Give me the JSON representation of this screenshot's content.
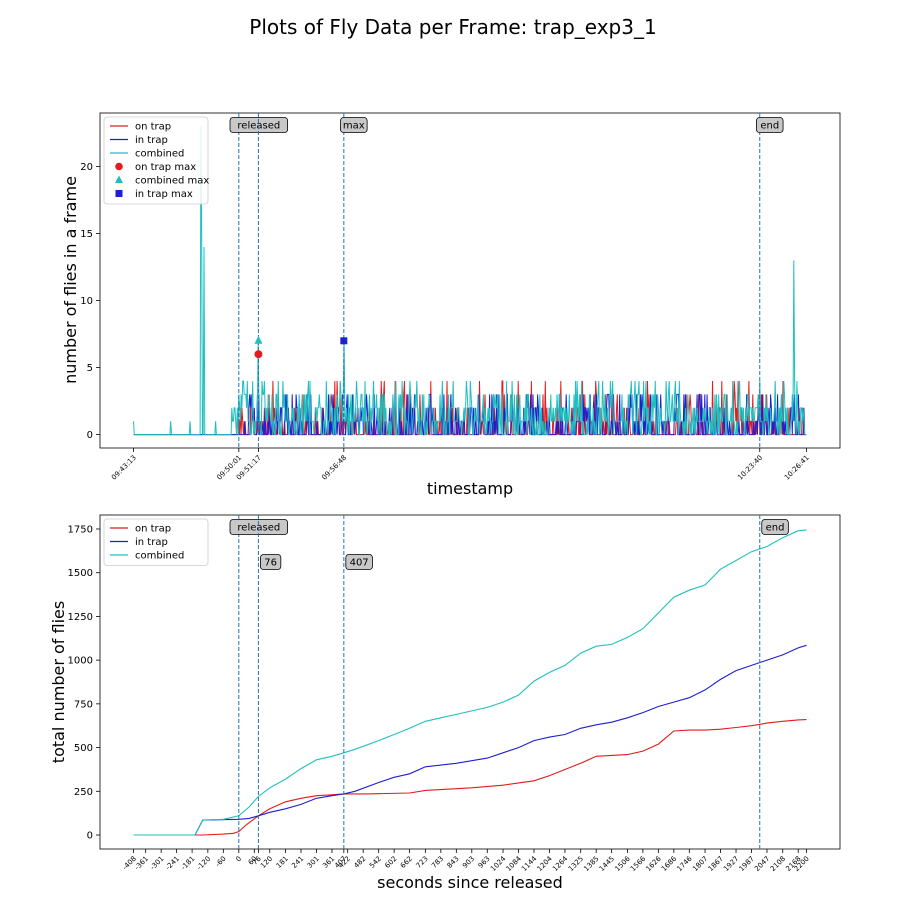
{
  "figure": {
    "title": "Plots of Fly Data per Frame: trap_exp3_1"
  },
  "colors": {
    "on_trap": "#e41a1c",
    "in_trap": "#1f1fcf",
    "combined": "#1fbfbf",
    "vline": "#1f77b4",
    "annot_bg": "#c8c8c8"
  },
  "chart_data": [
    {
      "type": "line",
      "xlabel": "timestamp",
      "ylabel": "number of flies in a frame",
      "ylim": [
        -1,
        24
      ],
      "yticks": [
        0,
        5,
        10,
        15,
        20
      ],
      "xticks": [
        {
          "t": 0,
          "label": "09:43:13"
        },
        {
          "t": 408,
          "label": "09:50:01"
        },
        {
          "t": 484,
          "label": "09:51:17"
        },
        {
          "t": 815,
          "label": "09:56:48"
        },
        {
          "t": 2427,
          "label": "10:23:40"
        },
        {
          "t": 2608,
          "label": "10:26:41"
        }
      ],
      "xlim": [
        -130,
        2738
      ],
      "legend": [
        {
          "name": "on trap",
          "kind": "line",
          "series": "on_trap"
        },
        {
          "name": "in trap",
          "kind": "line",
          "series": "in_trap"
        },
        {
          "name": "combined",
          "kind": "line",
          "series": "combined"
        },
        {
          "name": "on trap max",
          "kind": "circle",
          "series": "on_trap"
        },
        {
          "name": "combined max",
          "kind": "triangle",
          "series": "combined"
        },
        {
          "name": "in trap max",
          "kind": "square",
          "series": "in_trap"
        }
      ],
      "legend_loc": "upper left",
      "vlines": [
        {
          "t": 408,
          "label": "released"
        },
        {
          "t": 484,
          "label": ""
        },
        {
          "t": 815,
          "label": "max"
        },
        {
          "t": 2427,
          "label": "end"
        }
      ],
      "markers": [
        {
          "series": "on_trap",
          "shape": "circle",
          "t": 484,
          "y": 6
        },
        {
          "series": "combined",
          "shape": "triangle",
          "t": 484,
          "y": 7
        },
        {
          "series": "in_trap",
          "shape": "square",
          "t": 815,
          "y": 7
        }
      ],
      "series": [
        {
          "name": "on trap",
          "key": "on_trap",
          "seed": 11,
          "maxval": 4,
          "density": 0.35,
          "start": 408
        },
        {
          "name": "in trap",
          "key": "in_trap",
          "seed": 23,
          "maxval": 3,
          "density": 0.45,
          "start": 430
        },
        {
          "name": "combined",
          "key": "combined",
          "seed": 37,
          "maxval": 5,
          "density": 0.75,
          "start": 380,
          "spikes": [
            {
              "t": 0,
              "y": 1
            },
            {
              "t": 145,
              "y": 1
            },
            {
              "t": 220,
              "y": 1
            },
            {
              "t": 262,
              "y": 23
            },
            {
              "t": 264,
              "y": 15
            },
            {
              "t": 272,
              "y": 14
            },
            {
              "t": 318,
              "y": 1
            },
            {
              "t": 484,
              "y": 7
            },
            {
              "t": 815,
              "y": 7
            },
            {
              "t": 2560,
              "y": 13
            }
          ]
        }
      ]
    },
    {
      "type": "line",
      "xlabel": "seconds since released",
      "ylabel": "total number of flies",
      "ylim": [
        -80,
        1830
      ],
      "yticks": [
        0,
        250,
        500,
        750,
        1000,
        1250,
        1500,
        1750
      ],
      "xlim": [
        -538,
        2330
      ],
      "xticks": [
        -408,
        -361,
        -301,
        -241,
        -181,
        -120,
        -60,
        0,
        60,
        76,
        120,
        181,
        241,
        301,
        361,
        407,
        422,
        482,
        542,
        602,
        662,
        723,
        783,
        843,
        903,
        963,
        1024,
        1084,
        1144,
        1204,
        1264,
        1325,
        1385,
        1445,
        1506,
        1566,
        1626,
        1686,
        1746,
        1807,
        1867,
        1927,
        1987,
        2047,
        2108,
        2168,
        2200
      ],
      "legend": [
        {
          "name": "on trap",
          "kind": "line",
          "series": "on_trap"
        },
        {
          "name": "in trap",
          "kind": "line",
          "series": "in_trap"
        },
        {
          "name": "combined",
          "kind": "line",
          "series": "combined"
        }
      ],
      "legend_loc": "upper left",
      "vlines": [
        {
          "t": 0,
          "label": "released",
          "row": "top"
        },
        {
          "t": 76,
          "label": "76",
          "row": "second"
        },
        {
          "t": 407,
          "label": "407",
          "row": "second"
        },
        {
          "t": 2019,
          "label": "end",
          "row": "top"
        }
      ],
      "series": [
        {
          "name": "on trap",
          "key": "on_trap",
          "x": [
            -408,
            -170,
            -140,
            -60,
            -20,
            0,
            30,
            76,
            120,
            181,
            241,
            301,
            361,
            407,
            500,
            662,
            723,
            903,
            1024,
            1144,
            1204,
            1325,
            1385,
            1506,
            1566,
            1626,
            1686,
            1746,
            1807,
            1867,
            1927,
            1987,
            2047,
            2108,
            2168,
            2200
          ],
          "y": [
            0,
            0,
            0,
            5,
            10,
            20,
            60,
            110,
            150,
            190,
            210,
            225,
            230,
            235,
            235,
            240,
            255,
            270,
            285,
            310,
            340,
            410,
            450,
            460,
            480,
            520,
            595,
            600,
            600,
            605,
            615,
            625,
            640,
            650,
            658,
            660
          ]
        },
        {
          "name": "in trap",
          "key": "in_trap",
          "x": [
            -408,
            -170,
            -140,
            0,
            40,
            76,
            120,
            181,
            241,
            301,
            361,
            407,
            450,
            542,
            602,
            662,
            723,
            843,
            903,
            963,
            1024,
            1084,
            1144,
            1204,
            1264,
            1325,
            1385,
            1445,
            1506,
            1566,
            1626,
            1686,
            1746,
            1807,
            1867,
            1927,
            1987,
            2047,
            2108,
            2168,
            2200
          ],
          "y": [
            0,
            0,
            85,
            90,
            95,
            110,
            130,
            150,
            175,
            210,
            225,
            235,
            250,
            300,
            330,
            350,
            390,
            410,
            425,
            440,
            470,
            500,
            540,
            560,
            575,
            610,
            630,
            645,
            670,
            700,
            735,
            760,
            785,
            830,
            890,
            940,
            970,
            1000,
            1030,
            1070,
            1085
          ]
        },
        {
          "name": "combined",
          "key": "combined",
          "x": [
            -408,
            -170,
            -140,
            -60,
            0,
            40,
            76,
            120,
            181,
            241,
            301,
            361,
            407,
            450,
            542,
            602,
            662,
            723,
            783,
            843,
            903,
            963,
            1024,
            1084,
            1144,
            1204,
            1264,
            1325,
            1385,
            1445,
            1506,
            1566,
            1626,
            1686,
            1746,
            1807,
            1867,
            1927,
            1987,
            2047,
            2108,
            2168,
            2200
          ],
          "y": [
            0,
            0,
            85,
            90,
            110,
            160,
            220,
            270,
            320,
            380,
            430,
            450,
            470,
            490,
            540,
            575,
            610,
            650,
            670,
            690,
            710,
            730,
            760,
            800,
            880,
            930,
            970,
            1040,
            1080,
            1090,
            1130,
            1180,
            1270,
            1360,
            1400,
            1430,
            1520,
            1570,
            1620,
            1650,
            1700,
            1740,
            1745
          ]
        }
      ]
    }
  ]
}
